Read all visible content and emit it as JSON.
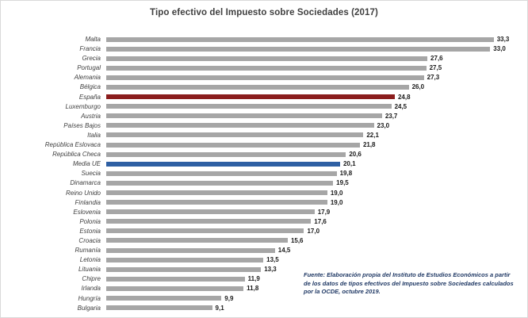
{
  "chart_data": {
    "type": "bar",
    "orientation": "horizontal",
    "title": "Tipo efectivo del Impuesto sobre Sociedades (2017)",
    "xlabel": "",
    "ylabel": "",
    "xlim": [
      0,
      35.5
    ],
    "grid": false,
    "legend": false,
    "bar_color": "#a6a6a6",
    "highlight_colors": {
      "España": "#8b1d1d",
      "Media UE": "#2e5fa3"
    },
    "categories": [
      "Malta",
      "Francia",
      "Grecia",
      "Portugal",
      "Alemania",
      "Bélgica",
      "España",
      "Luxemburgo",
      "Austria",
      "Países Bajos",
      "Italia",
      "República Eslovaca",
      "República Checa",
      "Media UE",
      "Suecia",
      "Dinamarca",
      "Reino Unido",
      "Finlandia",
      "Eslovenia",
      "Polonia",
      "Estonia",
      "Croacia",
      "Rumanía",
      "Letonia",
      "Lituania",
      "Chipre",
      "Irlanda",
      "Hungría",
      "Bulgaria"
    ],
    "values": [
      33.3,
      33.0,
      27.6,
      27.5,
      27.3,
      26.0,
      24.8,
      24.5,
      23.7,
      23.0,
      22.1,
      21.8,
      20.6,
      20.1,
      19.8,
      19.5,
      19.0,
      19.0,
      17.9,
      17.6,
      17.0,
      15.6,
      14.5,
      13.5,
      13.3,
      11.9,
      11.8,
      9.9,
      9.1
    ],
    "value_labels": [
      "33,3",
      "33,0",
      "27,6",
      "27,5",
      "27,3",
      "26,0",
      "24,8",
      "24,5",
      "23,7",
      "23,0",
      "22,1",
      "21,8",
      "20,6",
      "20,1",
      "19,8",
      "19,5",
      "19,0",
      "19,0",
      "17,9",
      "17,6",
      "17,0",
      "15,6",
      "14,5",
      "13,5",
      "13,3",
      "11,9",
      "11,8",
      "9,9",
      "9,1"
    ],
    "source_note": "Fuente: Elaboración propia del  Instituto de Estudios Económicos a partir de los datos de tipos efectivos del Impuesto sobre Sociedades calculados por la OCDE,  octubre 2019."
  }
}
